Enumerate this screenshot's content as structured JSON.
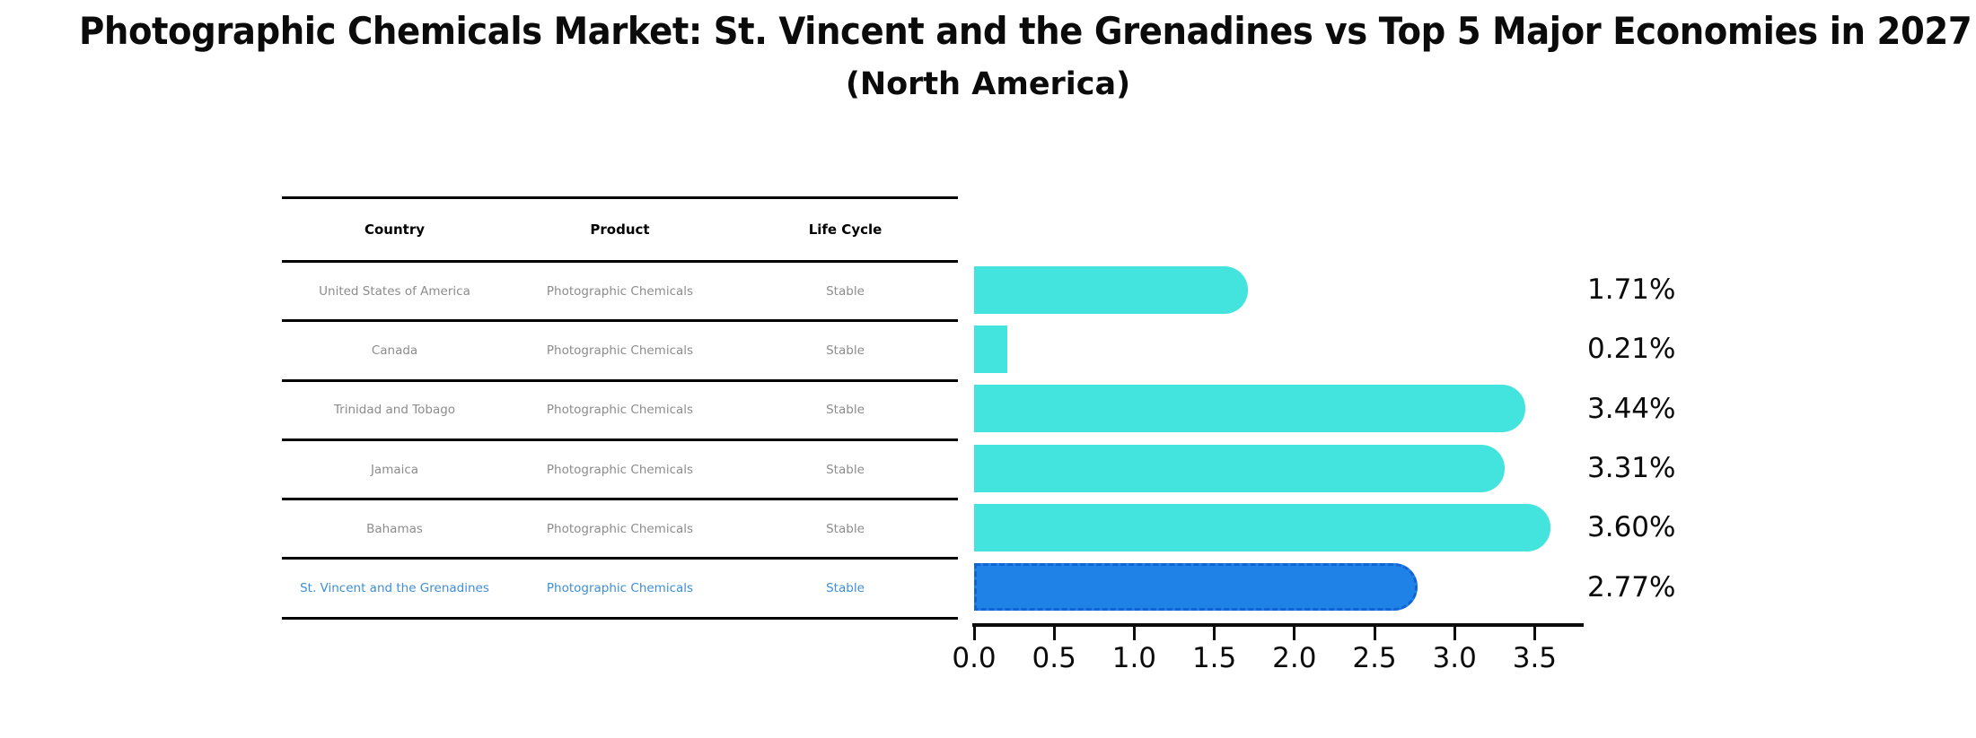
{
  "title": "Photographic Chemicals Market: St. Vincent and the Grenadines vs Top 5 Major Economies in 2027",
  "subtitle": "(North America)",
  "table": {
    "headers": [
      "Country",
      "Product",
      "Life Cycle"
    ],
    "rows": [
      {
        "country": "United States of America",
        "product": "Photographic Chemicals",
        "life_cycle": "Stable",
        "highlight": false
      },
      {
        "country": "Canada",
        "product": "Photographic Chemicals",
        "life_cycle": "Stable",
        "highlight": false
      },
      {
        "country": "Trinidad and Tobago",
        "product": "Photographic Chemicals",
        "life_cycle": "Stable",
        "highlight": false
      },
      {
        "country": "Jamaica",
        "product": "Photographic Chemicals",
        "life_cycle": "Stable",
        "highlight": false
      },
      {
        "country": "Bahamas",
        "product": "Photographic Chemicals",
        "life_cycle": "Stable",
        "highlight": false
      },
      {
        "country": "St. Vincent and the Grenadines",
        "product": "Photographic Chemicals",
        "life_cycle": "Stable",
        "highlight": true
      }
    ]
  },
  "chart_data": {
    "type": "bar",
    "orientation": "horizontal",
    "title": "Photographic Chemicals Market: St. Vincent and the Grenadines vs Top 5 Major Economies in 2027",
    "subtitle": "(North America)",
    "categories": [
      "United States of America",
      "Canada",
      "Trinidad and Tobago",
      "Jamaica",
      "Bahamas",
      "St. Vincent and the Grenadines"
    ],
    "values": [
      1.71,
      0.21,
      3.44,
      3.31,
      3.6,
      2.77
    ],
    "value_labels": [
      "1.71%",
      "0.21%",
      "3.44%",
      "3.31%",
      "3.60%",
      "2.77%"
    ],
    "xlabel": "",
    "ylabel": "",
    "xlim": [
      0.0,
      3.78
    ],
    "xticks": [
      "0.0",
      "0.5",
      "1.0",
      "1.5",
      "2.0",
      "2.5",
      "3.0",
      "3.5"
    ],
    "grid": false,
    "legend": false,
    "bar_color": "#43e4de",
    "highlight_index": 5,
    "highlight_color": "#1e82e6",
    "highlight_border_color": "#1263d6"
  }
}
